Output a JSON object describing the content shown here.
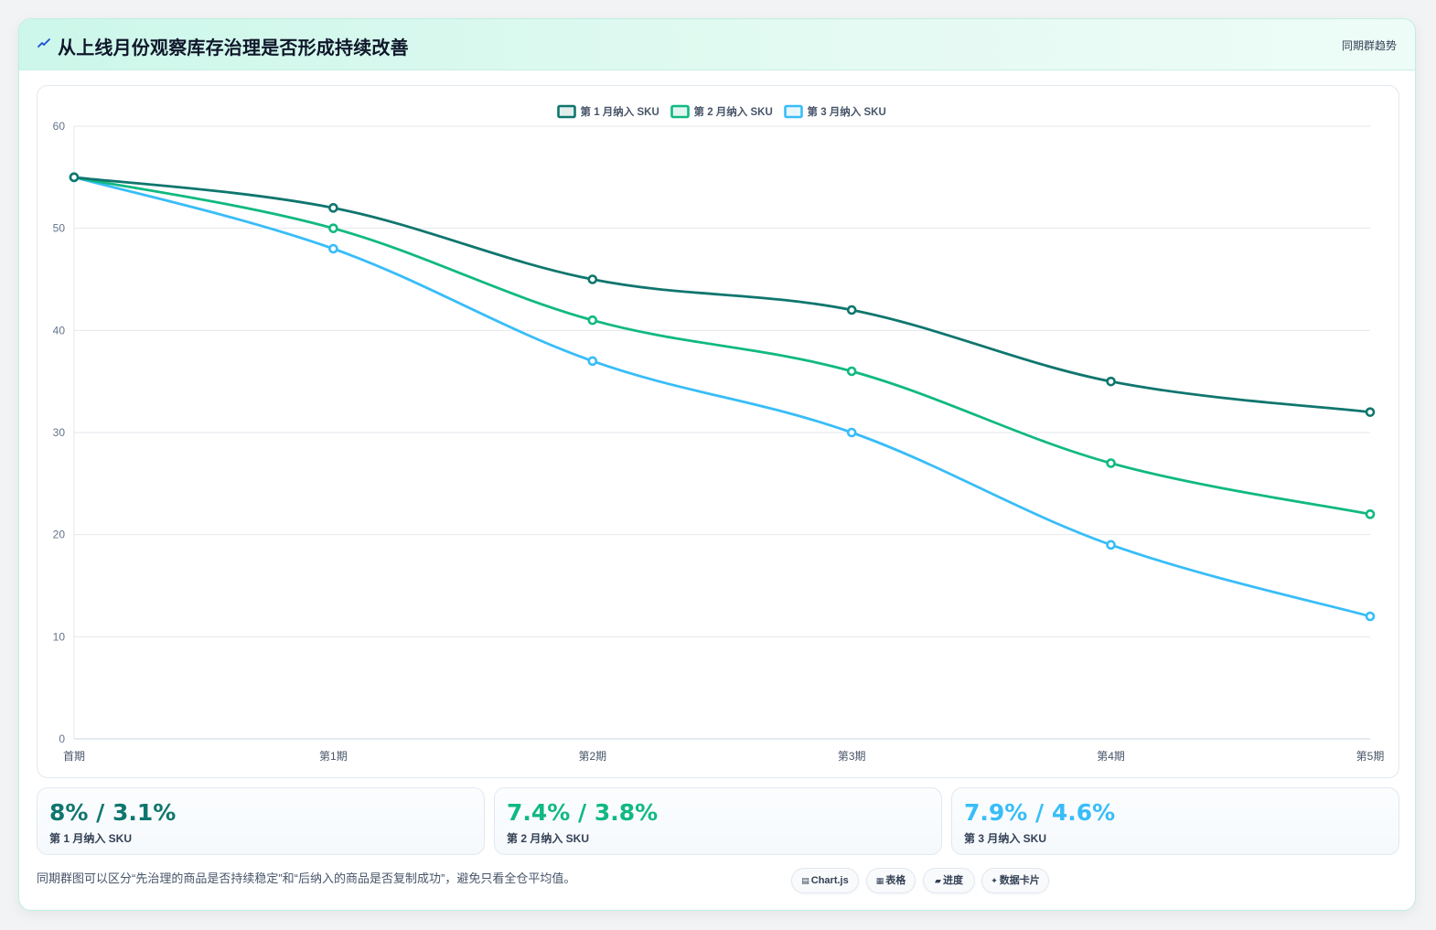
{
  "header": {
    "title": "从上线月份观察库存治理是否形成持续改善",
    "tag": "同期群趋势"
  },
  "colors": {
    "series1": "#0f766e",
    "series2": "#10b981",
    "series3": "#38bdf8"
  },
  "chart_data": {
    "type": "line",
    "categories": [
      "首期",
      "第1期",
      "第2期",
      "第3期",
      "第4期",
      "第5期"
    ],
    "series": [
      {
        "name": "第 1 月纳入 SKU",
        "values": [
          55,
          52,
          45,
          42,
          35,
          32
        ]
      },
      {
        "name": "第 2 月纳入 SKU",
        "values": [
          55,
          50,
          41,
          36,
          27,
          22
        ]
      },
      {
        "name": "第 3 月纳入 SKU",
        "values": [
          55,
          48,
          37,
          30,
          19,
          12
        ]
      }
    ],
    "yticks": [
      0,
      10,
      20,
      30,
      40,
      50,
      60
    ],
    "ylim": [
      0,
      60
    ],
    "grid": true,
    "legend": "top-center"
  },
  "stats": [
    {
      "value": "8% / 3.1%",
      "label": "第 1 月纳入 SKU"
    },
    {
      "value": "7.4% / 3.8%",
      "label": "第 2 月纳入 SKU"
    },
    {
      "value": "7.9% / 4.6%",
      "label": "第 3 月纳入 SKU"
    }
  ],
  "footer": {
    "note": "同期群图可以区分“先治理的商品是否持续稳定”和“后纳入的商品是否复制成功”，避免只看全仓平均值。",
    "chips": [
      {
        "icon": "▤",
        "label": "Chart.js"
      },
      {
        "icon": "▦",
        "label": "表格"
      },
      {
        "icon": "▰",
        "label": "进度"
      },
      {
        "icon": "✦",
        "label": "数据卡片"
      }
    ]
  }
}
